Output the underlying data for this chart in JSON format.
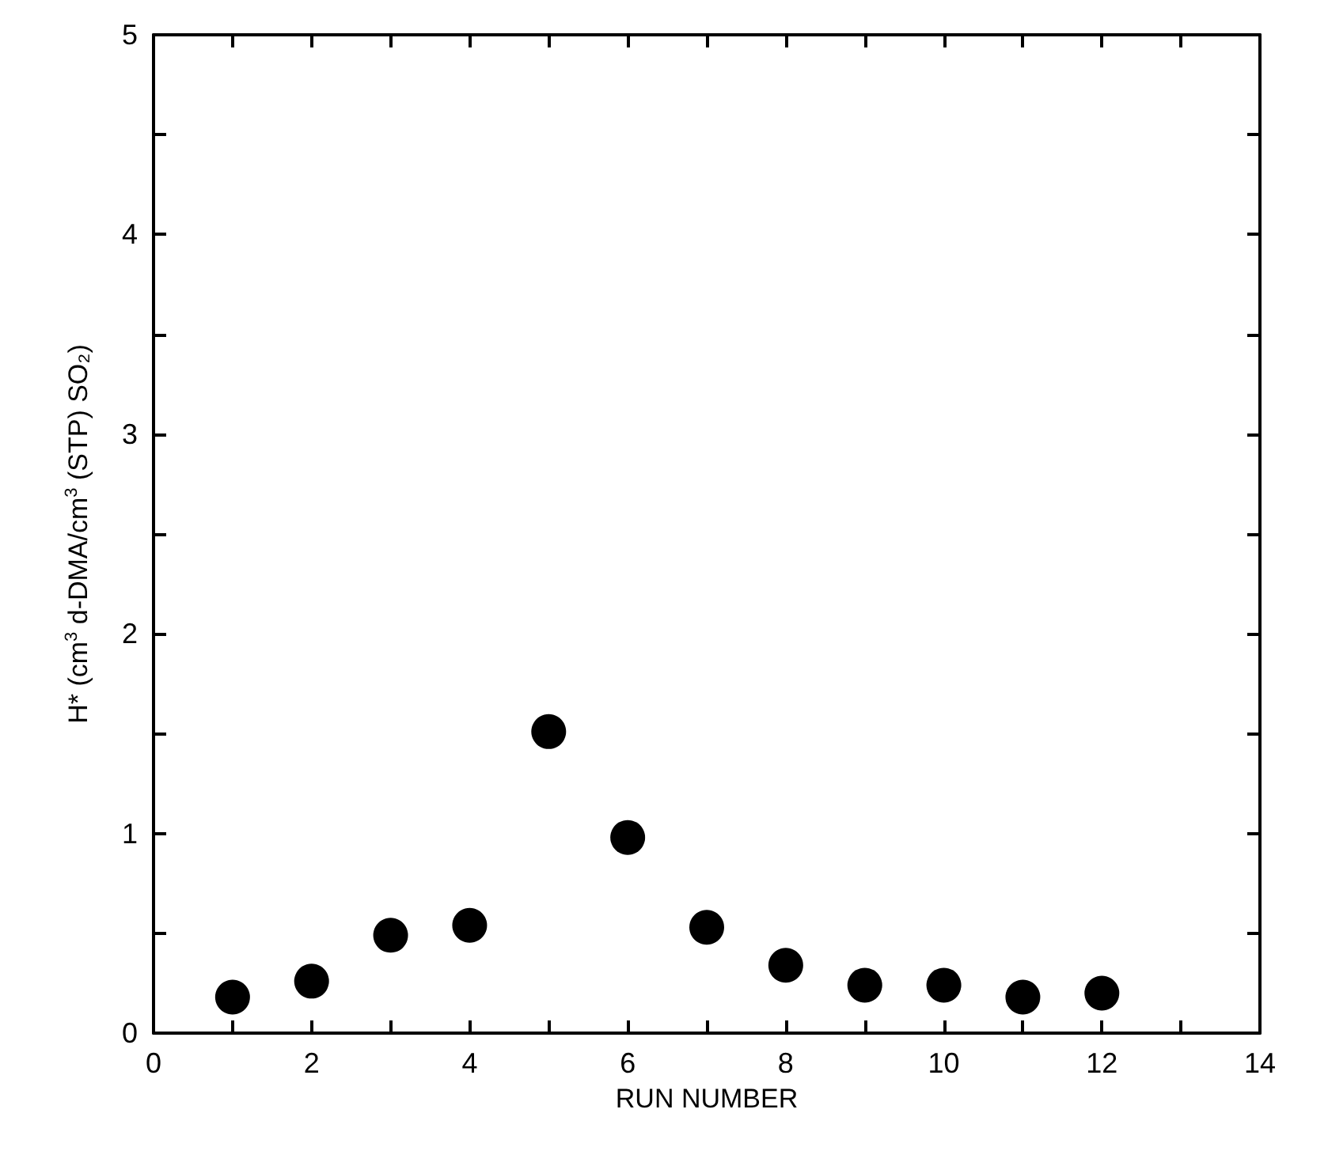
{
  "chart_data": {
    "type": "scatter",
    "xlabel": "RUN NUMBER",
    "ylabel": "H* (cm$^{3}$ d-DMA/cm$^{3}$ (STP) SO₂)",
    "x": [
      1,
      2,
      3,
      4,
      5,
      6,
      7,
      8,
      9,
      10,
      11,
      12
    ],
    "series": [
      {
        "color": "#000000",
        "values": [
          0.18,
          0.26,
          0.49,
          0.54,
          1.51,
          0.98,
          0.53,
          0.34,
          0.24,
          0.24,
          0.18,
          0.2
        ]
      }
    ],
    "xlim": [
      0,
      14
    ],
    "xticks": [
      0,
      {
        "value": 1,
        "label": null
      },
      2,
      {
        "value": 3,
        "label": null
      },
      4,
      {
        "value": 5,
        "label": null
      },
      6,
      {
        "value": 7,
        "label": null
      },
      8,
      {
        "value": 9,
        "label": null
      },
      10,
      {
        "value": 11,
        "label": null
      },
      12,
      {
        "value": 13,
        "label": null
      },
      14
    ],
    "ylim": [
      0,
      5
    ],
    "yticks": [
      0,
      {
        "value": 0.5,
        "label": null
      },
      1,
      {
        "value": 1.5,
        "label": null
      },
      2,
      {
        "value": 2.5,
        "label": null
      },
      3,
      {
        "value": 3.5,
        "label": null
      },
      4,
      {
        "value": 4.5,
        "label": null
      },
      5
    ],
    "grid": false,
    "marker": "circle"
  }
}
